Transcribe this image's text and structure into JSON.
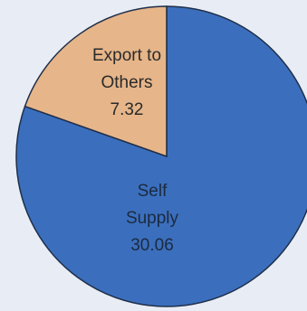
{
  "chart_data": {
    "type": "pie",
    "title": "",
    "slices": [
      {
        "category_lines": [
          "Self",
          "Supply"
        ],
        "value": 30.06,
        "value_label": "30.06",
        "color": "#3b6fbd"
      },
      {
        "category_lines": [
          "Export to",
          "Others"
        ],
        "value": 7.32,
        "value_label": "7.32",
        "color": "#e6b589"
      }
    ],
    "start_at": "12 o'clock",
    "direction": "clockwise",
    "legend": "none",
    "edge_color": "#1f2f4a",
    "background": "#e8edf5"
  }
}
